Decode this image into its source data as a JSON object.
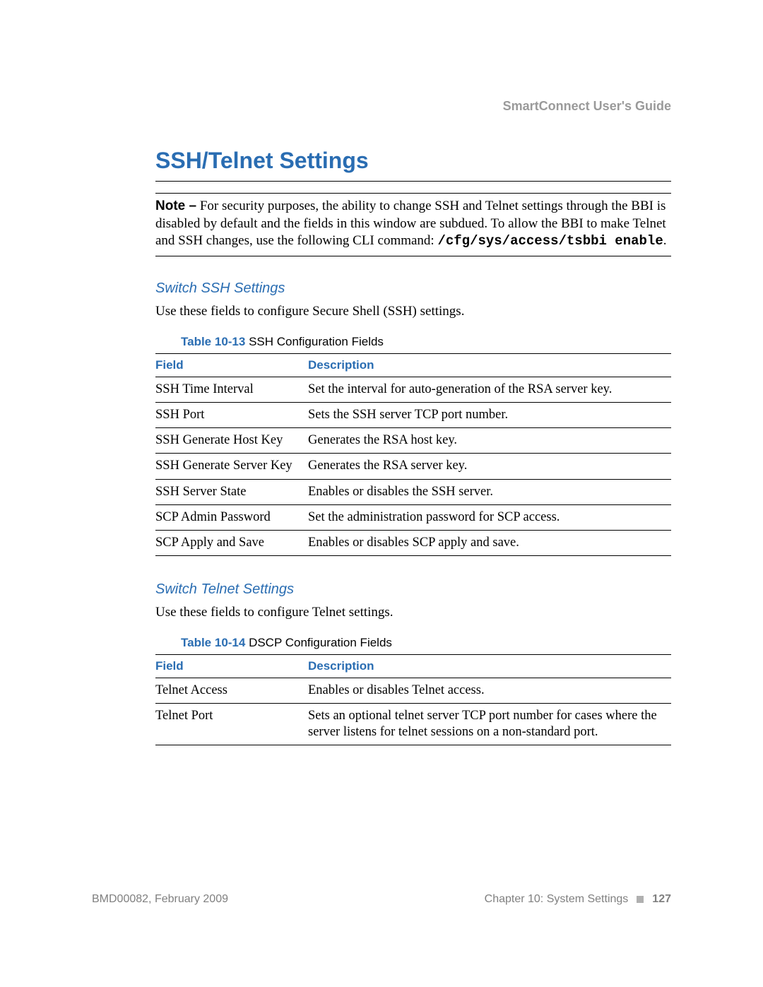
{
  "colors": {
    "brand_blue": "#2a6db2",
    "header_gray": "#9a9a9a",
    "footer_gray": "#808080",
    "rule": "#000000",
    "background": "#ffffff"
  },
  "header": {
    "doc_title": "SmartConnect User's Guide"
  },
  "main_heading": "SSH/Telnet Settings",
  "note": {
    "label": "Note –",
    "text_before_cli": " For security purposes, the ability to change SSH and Telnet settings through the BBI is disabled by default and the fields in this window are subdued. To allow the BBI to make Telnet and SSH changes, use the following CLI command: ",
    "cli_command": "/cfg/sys/access/tsbbi enable",
    "trailing_period": "."
  },
  "sections": [
    {
      "heading": "Switch SSH Settings",
      "intro": "Use these fields to configure Secure Shell (SSH) settings.",
      "table": {
        "caption_num": "Table 10-13",
        "caption_text": "  SSH Configuration Fields",
        "columns": [
          "Field",
          "Description"
        ],
        "col_widths": [
          "210px",
          "auto"
        ],
        "rows": [
          [
            "SSH Time Interval",
            "Set the interval for auto-generation of the RSA server key."
          ],
          [
            "SSH Port",
            "Sets the SSH server TCP port number."
          ],
          [
            "SSH Generate Host Key",
            "Generates the RSA host key."
          ],
          [
            "SSH Generate Server Key",
            "Generates the RSA server key."
          ],
          [
            "SSH Server State",
            "Enables or disables the SSH server."
          ],
          [
            "SCP Admin Password",
            "Set the administration password for SCP access."
          ],
          [
            "SCP Apply and Save",
            "Enables or disables SCP apply and save."
          ]
        ]
      }
    },
    {
      "heading": "Switch Telnet Settings",
      "intro": "Use these fields to configure Telnet settings.",
      "table": {
        "caption_num": "Table 10-14",
        "caption_text": "  DSCP Configuration Fields",
        "columns": [
          "Field",
          "Description"
        ],
        "col_widths": [
          "210px",
          "auto"
        ],
        "rows": [
          [
            "Telnet Access",
            "Enables or disables Telnet access."
          ],
          [
            "Telnet Port",
            "Sets an optional telnet server TCP port number for cases where the server listens for telnet sessions on a non-standard port."
          ]
        ]
      }
    }
  ],
  "footer": {
    "left": "BMD00082, February 2009",
    "chapter": "Chapter 10: System Settings",
    "page_number": "127"
  }
}
